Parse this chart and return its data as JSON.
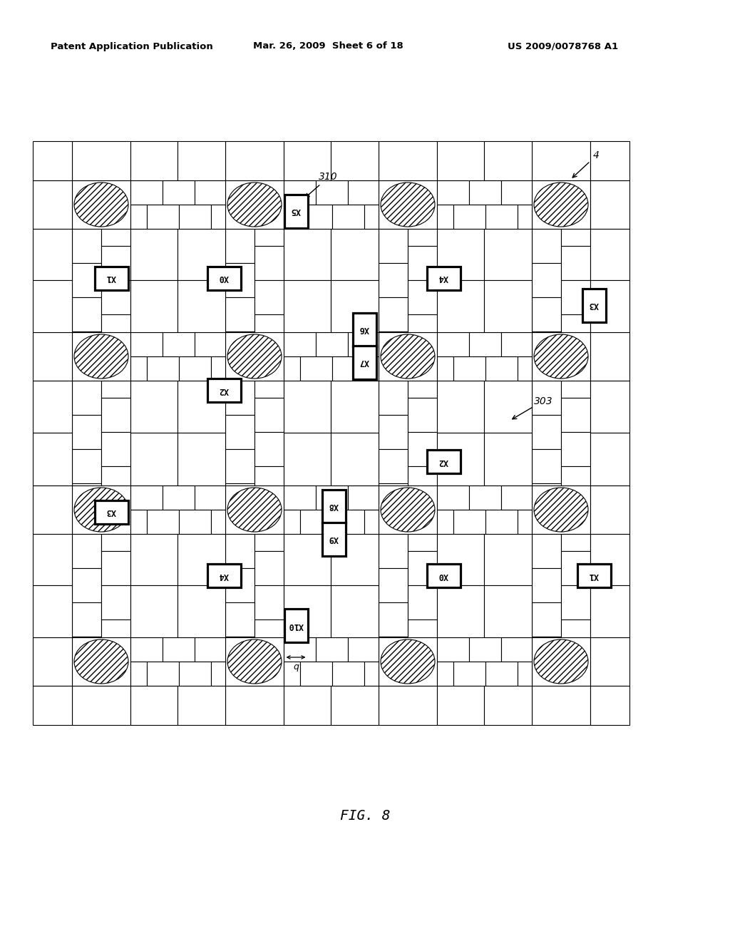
{
  "header_left": "Patent Application Publication",
  "header_mid": "Mar. 26, 2009  Sheet 6 of 18",
  "header_right": "US 2009/0078768 A1",
  "figure_label": "FIG. 8",
  "label_4": "4",
  "label_310": "310",
  "label_303": "303",
  "label_q": "q",
  "bg_color": "#ffffff"
}
